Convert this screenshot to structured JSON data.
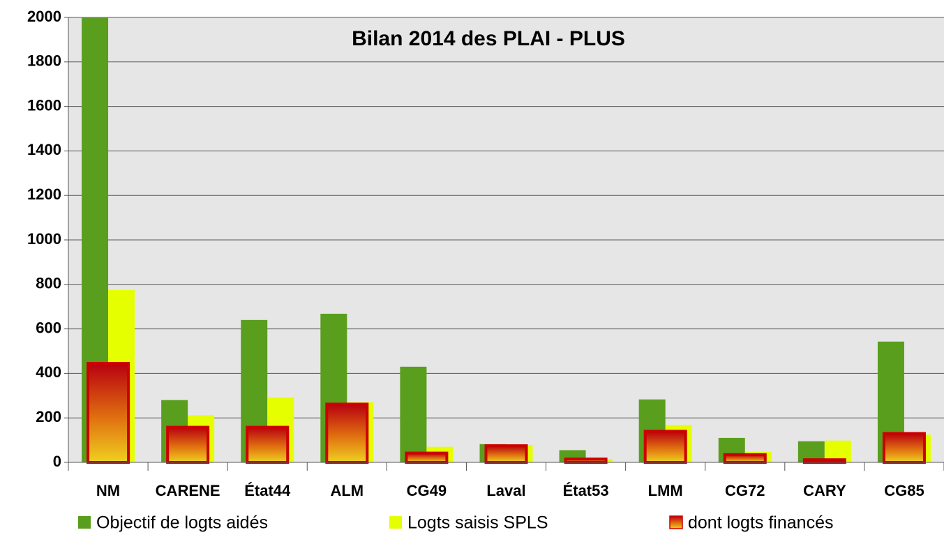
{
  "chart_data": {
    "type": "bar",
    "title": "Bilan 2014 des PLAI - PLUS",
    "categories": [
      "NM",
      "CARENE",
      "État44",
      "ALM",
      "CG49",
      "Laval",
      "État53",
      "LMM",
      "CG72",
      "CARY",
      "CG85"
    ],
    "series": [
      {
        "name": "Objectif de logts aidés",
        "color": "#5a9e1e",
        "values": [
          2000,
          280,
          640,
          668,
          430,
          82,
          55,
          283,
          110,
          95,
          543
        ]
      },
      {
        "name": "Logts saisis SPLS",
        "color": "#e6ff00",
        "values": [
          775,
          212,
          292,
          270,
          70,
          78,
          15,
          168,
          48,
          98,
          125
        ]
      },
      {
        "name": "dont logts financés",
        "color": "#cc0000",
        "values": [
          445,
          158,
          158,
          262,
          42,
          75,
          15,
          140,
          35,
          12,
          130
        ]
      }
    ],
    "ylim": [
      0,
      2000
    ],
    "yticks": [
      0,
      200,
      400,
      600,
      800,
      1000,
      1200,
      1400,
      1600,
      1800,
      2000
    ],
    "grid": true
  }
}
